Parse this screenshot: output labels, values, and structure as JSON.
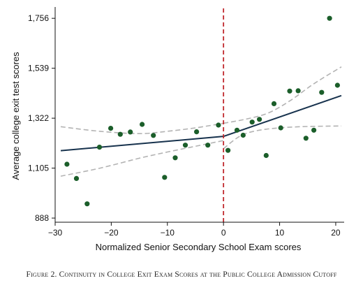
{
  "caption": "Figure 2. Continuity in College Exit Exam Scores at the Public College Admission Cutoff",
  "colors": {
    "points": "#1b5e2a",
    "fit_line": "#17324d",
    "ci_band": "#b3b3b3",
    "cutoff": "#c0282d",
    "axis": "#111111"
  },
  "chart_data": {
    "type": "scatter",
    "title": "",
    "xlabel": "Normalized Senior Secondary School Exam scores",
    "ylabel": "Average college exit test scores",
    "xlim": [
      -30,
      21.5
    ],
    "ylim": [
      870,
      1790
    ],
    "x_ticks": [
      -30,
      -20,
      -10,
      0,
      10,
      20
    ],
    "x_tick_labels": [
      "−30",
      "−20",
      "−10",
      "0",
      "10",
      "20"
    ],
    "y_ticks": [
      888,
      1105,
      1322,
      1539,
      1756
    ],
    "y_tick_labels": [
      "888",
      "1,105",
      "1,322",
      "1,539",
      "1,756"
    ],
    "cutoff_x": 0,
    "grid": false,
    "legend": "none",
    "points": [
      {
        "x": -27.9,
        "y": 1122
      },
      {
        "x": -26.2,
        "y": 1060
      },
      {
        "x": -24.3,
        "y": 950
      },
      {
        "x": -22.1,
        "y": 1196
      },
      {
        "x": -20.1,
        "y": 1278
      },
      {
        "x": -18.4,
        "y": 1252
      },
      {
        "x": -16.6,
        "y": 1262
      },
      {
        "x": -14.5,
        "y": 1295
      },
      {
        "x": -12.5,
        "y": 1247
      },
      {
        "x": -10.5,
        "y": 1065
      },
      {
        "x": -8.6,
        "y": 1150
      },
      {
        "x": -6.8,
        "y": 1205
      },
      {
        "x": -4.8,
        "y": 1263
      },
      {
        "x": -2.8,
        "y": 1205
      },
      {
        "x": -0.9,
        "y": 1292
      },
      {
        "x": 0.8,
        "y": 1182
      },
      {
        "x": 2.4,
        "y": 1270
      },
      {
        "x": 3.5,
        "y": 1248
      },
      {
        "x": 5.1,
        "y": 1305
      },
      {
        "x": 6.4,
        "y": 1317
      },
      {
        "x": 7.6,
        "y": 1160
      },
      {
        "x": 9.0,
        "y": 1385
      },
      {
        "x": 10.2,
        "y": 1280
      },
      {
        "x": 11.8,
        "y": 1440
      },
      {
        "x": 13.3,
        "y": 1441
      },
      {
        "x": 14.7,
        "y": 1235
      },
      {
        "x": 16.1,
        "y": 1270
      },
      {
        "x": 17.5,
        "y": 1434
      },
      {
        "x": 18.9,
        "y": 1756
      },
      {
        "x": 20.3,
        "y": 1465
      }
    ],
    "fit_left": {
      "x": [
        -29,
        0
      ],
      "y": [
        1181,
        1243
      ]
    },
    "fit_right": {
      "x": [
        0,
        21
      ],
      "y": [
        1243,
        1420
      ]
    },
    "ci_upper_left": {
      "x": [
        -29,
        -22,
        -15,
        -10,
        -5,
        0
      ],
      "y": [
        1285,
        1265,
        1255,
        1265,
        1280,
        1300
      ]
    },
    "ci_lower_left": {
      "x": [
        -29,
        -22,
        -15,
        -10,
        -5,
        0
      ],
      "y": [
        1070,
        1105,
        1148,
        1175,
        1200,
        1225
      ]
    },
    "ci_upper_right": {
      "x": [
        0,
        4,
        8,
        12,
        16,
        21
      ],
      "y": [
        1300,
        1318,
        1345,
        1400,
        1470,
        1545
      ]
    },
    "ci_lower_right": {
      "x": [
        0,
        3,
        6,
        10,
        15,
        21
      ],
      "y": [
        1190,
        1245,
        1268,
        1280,
        1286,
        1288
      ]
    }
  }
}
